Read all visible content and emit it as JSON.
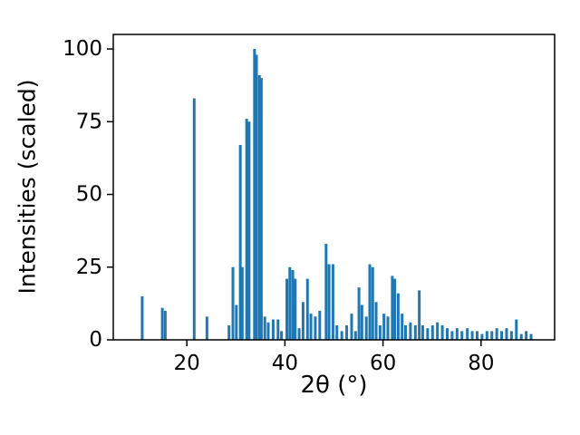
{
  "figure": {
    "background": "#ffffff"
  },
  "chart_data": {
    "type": "bar",
    "title": "",
    "xlabel": "2θ (°)",
    "ylabel": "Intensities (scaled)",
    "legend": "none",
    "grid": false,
    "bar_color": "#1f77b4",
    "axis_color": "#000000",
    "xlim": [
      5,
      95
    ],
    "ylim": [
      0,
      105
    ],
    "xticks": [
      20,
      40,
      60,
      80
    ],
    "yticks": [
      0,
      25,
      50,
      75,
      100
    ],
    "x": [
      10.9,
      15.0,
      15.6,
      21.5,
      24.1,
      28.6,
      29.4,
      30.1,
      30.9,
      31.3,
      32.2,
      32.7,
      33.8,
      34.2,
      34.8,
      35.2,
      35.9,
      36.6,
      37.6,
      38.6,
      39.3,
      40.4,
      41.0,
      41.6,
      42.1,
      42.9,
      43.7,
      44.6,
      45.3,
      46.2,
      47.1,
      48.4,
      49.0,
      49.8,
      50.6,
      51.6,
      52.6,
      53.6,
      54.4,
      55.1,
      55.7,
      56.6,
      57.3,
      57.9,
      58.6,
      59.4,
      60.2,
      61.0,
      61.9,
      62.4,
      63.1,
      63.9,
      64.6,
      65.6,
      66.6,
      67.4,
      68.1,
      69.1,
      70.1,
      71.1,
      72.1,
      73.1,
      74.1,
      75.1,
      76.1,
      77.2,
      78.2,
      79.2,
      80.2,
      81.2,
      82.2,
      83.2,
      84.2,
      85.2,
      86.2,
      87.2,
      88.2,
      89.2,
      90.2
    ],
    "values": [
      15,
      11,
      10,
      83,
      8,
      5,
      25,
      12,
      67,
      25,
      76,
      75,
      100,
      98,
      91,
      90,
      8,
      6,
      7,
      7,
      3,
      21,
      25,
      24,
      21,
      4,
      13,
      21,
      9,
      8,
      10,
      33,
      26,
      26,
      5,
      3,
      5,
      9,
      3,
      18,
      12,
      8,
      26,
      25,
      13,
      5,
      9,
      8,
      22,
      21,
      16,
      9,
      5,
      6,
      5,
      17,
      5,
      4,
      5,
      6,
      5,
      4,
      3,
      4,
      3,
      4,
      3,
      3,
      2,
      3,
      3,
      4,
      3,
      4,
      3,
      7,
      2,
      3,
      2
    ]
  }
}
